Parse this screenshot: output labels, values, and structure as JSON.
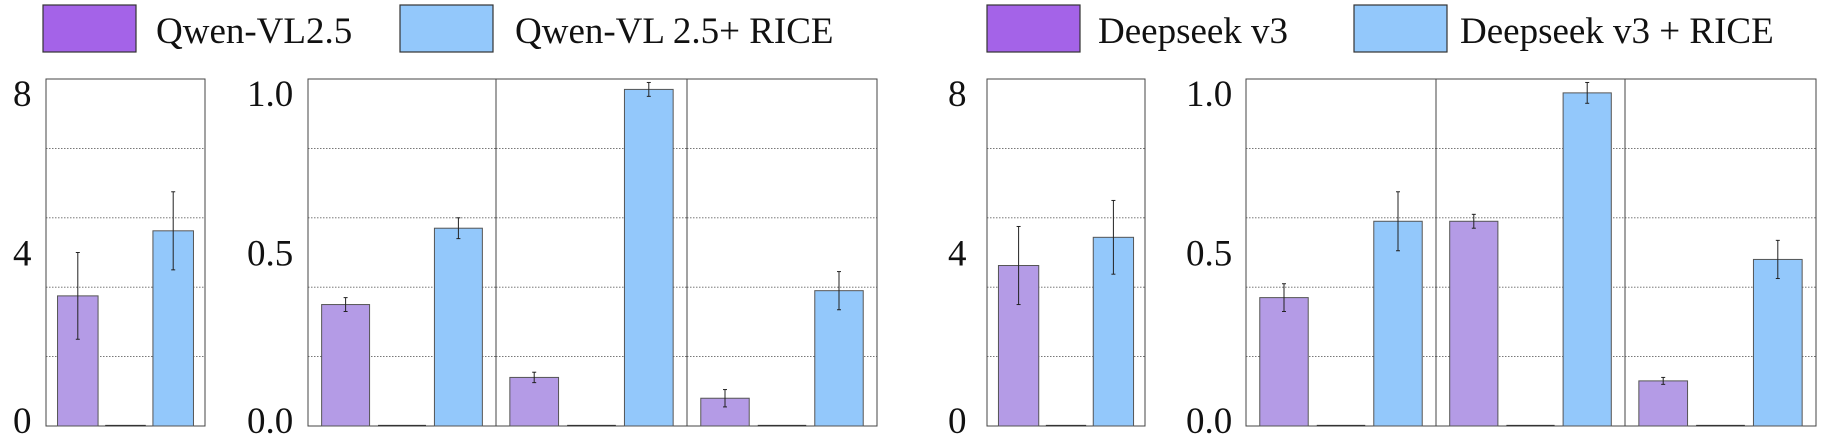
{
  "colors": {
    "base_legend": "#a463e8",
    "rice_legend": "#93c8fb",
    "base_bar": "#b49be6",
    "rice_bar": "#93c8fb",
    "grid": "#666666",
    "axis": "#444444"
  },
  "groups": [
    {
      "legend": [
        {
          "label": "Qwen-VL2.5",
          "color": "#a463e8"
        },
        {
          "label": "Qwen-VL 2.5+ RICE",
          "color": "#93c8fb"
        }
      ]
    },
    {
      "legend": [
        {
          "label": "Deepseek v3",
          "color": "#a463e8"
        },
        {
          "label": "Deepseek v3 + RICE",
          "color": "#93c8fb"
        }
      ]
    }
  ],
  "chart_data": [
    {
      "type": "bar",
      "group": 0,
      "ylim": [
        0,
        8
      ],
      "ytick_labels": [
        "0",
        "4",
        "8"
      ],
      "grid": true,
      "categories": [
        "",
        "",
        ""
      ],
      "series": [
        {
          "values": [
            3.0,
            0.0,
            4.5
          ],
          "errors": [
            1.0,
            0.0,
            0.9
          ]
        }
      ]
    },
    {
      "type": "bar",
      "group": 0,
      "ylim": [
        0,
        1.0
      ],
      "ytick_labels": [
        "0.0",
        "0.5",
        "1.0"
      ],
      "grid": true,
      "categories": [
        "",
        "",
        ""
      ],
      "series": [
        {
          "values": [
            0.35,
            0.0,
            0.57
          ],
          "errors": [
            0.02,
            0.0,
            0.03
          ]
        }
      ]
    },
    {
      "type": "bar",
      "group": 0,
      "ylim": [
        0,
        1.0
      ],
      "grid": true,
      "categories": [
        "",
        "",
        ""
      ],
      "series": [
        {
          "values": [
            0.14,
            0.0,
            0.97
          ],
          "errors": [
            0.015,
            0.0,
            0.02
          ]
        }
      ]
    },
    {
      "type": "bar",
      "group": 0,
      "ylim": [
        0,
        1.0
      ],
      "grid": true,
      "categories": [
        "",
        "",
        ""
      ],
      "series": [
        {
          "values": [
            0.08,
            0.0,
            0.39
          ],
          "errors": [
            0.025,
            0.0,
            0.055
          ]
        }
      ]
    },
    {
      "type": "bar",
      "group": 1,
      "ylim": [
        0,
        8
      ],
      "ytick_labels": [
        "0",
        "4",
        "8"
      ],
      "grid": true,
      "categories": [
        "",
        "",
        ""
      ],
      "series": [
        {
          "values": [
            3.7,
            0.0,
            4.35
          ],
          "errors": [
            0.9,
            0.0,
            0.85
          ]
        }
      ]
    },
    {
      "type": "bar",
      "group": 1,
      "ylim": [
        0,
        1.0
      ],
      "ytick_labels": [
        "0.0",
        "0.5",
        "1.0"
      ],
      "grid": true,
      "categories": [
        "",
        "",
        ""
      ],
      "series": [
        {
          "values": [
            0.37,
            0.0,
            0.59
          ],
          "errors": [
            0.04,
            0.0,
            0.085
          ]
        }
      ]
    },
    {
      "type": "bar",
      "group": 1,
      "ylim": [
        0,
        1.0
      ],
      "grid": true,
      "categories": [
        "",
        "",
        ""
      ],
      "series": [
        {
          "values": [
            0.59,
            0.0,
            0.96
          ],
          "errors": [
            0.02,
            0.0,
            0.03
          ]
        }
      ]
    },
    {
      "type": "bar",
      "group": 1,
      "ylim": [
        0,
        1.0
      ],
      "grid": true,
      "categories": [
        "",
        "",
        ""
      ],
      "series": [
        {
          "values": [
            0.13,
            0.0,
            0.48
          ],
          "errors": [
            0.01,
            0.0,
            0.055
          ]
        }
      ]
    }
  ]
}
